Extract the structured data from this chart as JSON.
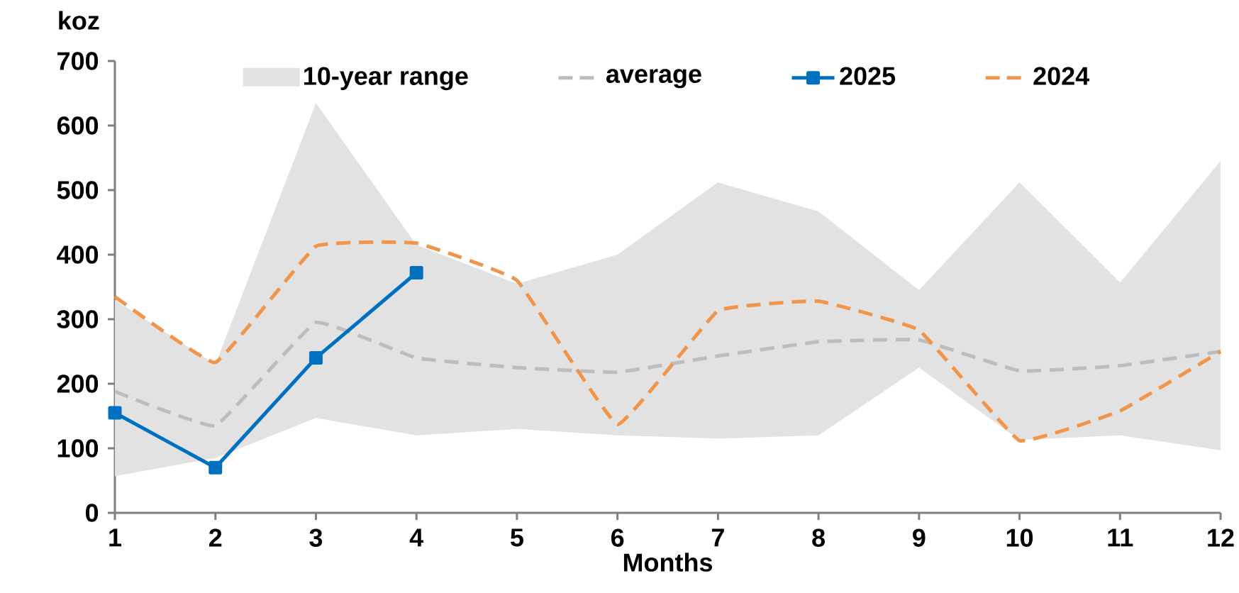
{
  "chart_data": {
    "type": "line",
    "ylabel": "koz",
    "xlabel": "Months",
    "x": [
      1,
      2,
      3,
      4,
      5,
      6,
      7,
      8,
      9,
      10,
      11,
      12
    ],
    "xlim": [
      1,
      12
    ],
    "xticks": [
      1,
      2,
      3,
      4,
      5,
      6,
      7,
      8,
      9,
      10,
      11,
      12
    ],
    "ylim": [
      0,
      700
    ],
    "yticks": [
      0,
      100,
      200,
      300,
      400,
      500,
      600,
      700
    ],
    "legend": "top",
    "series": [
      {
        "name": "10-year range",
        "type": "area",
        "color": "#e2e2e2",
        "values": [
          null,
          null,
          null,
          null,
          null,
          null,
          null,
          null,
          null,
          null,
          null,
          null
        ],
        "upper": [
          330,
          230,
          635,
          415,
          355,
          400,
          512,
          467,
          345,
          512,
          357,
          545
        ],
        "lower": [
          57,
          85,
          147,
          120,
          130,
          120,
          115,
          120,
          225,
          113,
          120,
          97
        ]
      },
      {
        "name": "average",
        "color": "#bdbdbd",
        "line_style": "dashed",
        "marker": "none",
        "values": [
          188,
          135,
          295,
          240,
          225,
          218,
          243,
          265,
          268,
          220,
          228,
          250
        ]
      },
      {
        "name": "2025",
        "color": "#0070c0",
        "line_style": "solid",
        "marker": "square",
        "values": [
          155,
          70,
          240,
          372,
          null,
          null,
          null,
          null,
          null,
          null,
          null,
          null
        ]
      },
      {
        "name": "2024",
        "color": "#f0954a",
        "line_style": "dashed",
        "marker": "none",
        "values": [
          335,
          233,
          413,
          418,
          360,
          137,
          313,
          328,
          283,
          112,
          158,
          250
        ]
      }
    ]
  }
}
